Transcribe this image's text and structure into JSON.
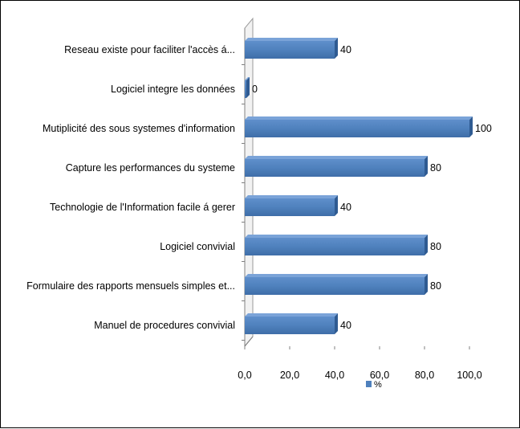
{
  "chart_data": {
    "type": "bar",
    "orientation": "horizontal",
    "style": "3d",
    "categories": [
      "Reseau existe pour faciliter l'accès á...",
      "Logiciel integre les données",
      "Mutiplicité des sous systemes d'information",
      "Capture les performances du systeme",
      "Technologie de l'Information facile á gerer",
      "Logiciel convivial",
      "Formulaire des rapports mensuels simples et...",
      "Manuel de procedures convivial"
    ],
    "series": [
      {
        "name": "%",
        "values": [
          40,
          0,
          100,
          80,
          40,
          80,
          80,
          40
        ],
        "data_labels": [
          "40",
          "0",
          "100",
          "80",
          "40",
          "80",
          "80",
          "40"
        ],
        "color": "#4f81bd"
      }
    ],
    "xlim": [
      0,
      100
    ],
    "x_ticks": [
      "0,0",
      "20,0",
      "40,0",
      "60,0",
      "80,0",
      "100,0"
    ],
    "title": "",
    "xlabel": "",
    "ylabel": "",
    "grid": false,
    "legend": {
      "position": "bottom",
      "entries": [
        "%"
      ]
    }
  }
}
